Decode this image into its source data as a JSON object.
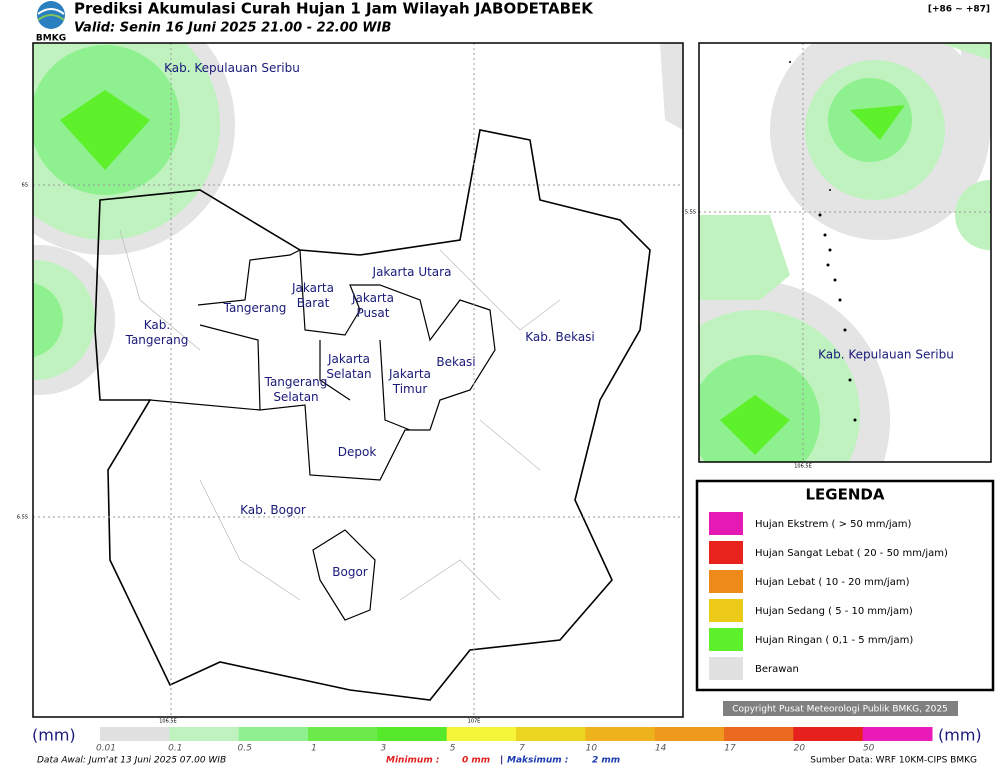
{
  "header": {
    "logo": "BMKG",
    "title": "Prediksi Akumulasi Curah Hujan 1 Jam Wilayah JABODETABEK",
    "valid": "Valid: Senin 16 Juni 2025 21.00 - 22.00 WIB",
    "range": "[+86 ~ +87]"
  },
  "main_map": {
    "regions": [
      "Kab. Kepulauan Seribu",
      "Jakarta Utara",
      "Jakarta\nBarat",
      "Jakarta\nPusat",
      "Tangerang",
      "Kab.\nTangerang",
      "Jakarta\nSelatan",
      "Jakarta\nTimur",
      "Bekasi",
      "Kab. Bekasi",
      "Tangerang\nSelatan",
      "Depok",
      "Kab. Bogor",
      "Bogor"
    ],
    "lat_labels": [
      "6S",
      "6.5S"
    ],
    "lon_labels": [
      "106.5E",
      "107E"
    ]
  },
  "inset_map": {
    "regions": [
      "Kab. Kepulauan Seribu"
    ],
    "lat_labels": [
      "5.5S"
    ],
    "lon_labels": [
      "106.5E"
    ]
  },
  "legend": {
    "title": "LEGENDA",
    "items": [
      {
        "label": "Hujan Ekstrem ( > 50 mm/jam)",
        "color": "#e619b4"
      },
      {
        "label": "Hujan Sangat Lebat ( 20 - 50 mm/jam)",
        "color": "#e8231e"
      },
      {
        "label": "Hujan Lebat ( 10 - 20 mm/jam)",
        "color": "#ee8a1a"
      },
      {
        "label": "Hujan Sedang ( 5 - 10 mm/jam)",
        "color": "#eccb18"
      },
      {
        "label": "Hujan Ringan ( 0,1 - 5 mm/jam)",
        "color": "#5ef02a"
      },
      {
        "label": "Berawan",
        "color": "#e1e1e1"
      }
    ]
  },
  "copyright": "Copyright Pusat Meteorologi Publik BMKG, 2025",
  "colorbar": {
    "unit_left": "(mm)",
    "unit_right": "(mm)",
    "labels": [
      "0.01",
      "0.1",
      "0.5",
      "1",
      "3",
      "5",
      "7",
      "10",
      "14",
      "17",
      "20",
      "50"
    ],
    "colors": [
      "#e1e1e1",
      "#bff2bf",
      "#8ff08f",
      "#6cea4a",
      "#56e82a",
      "#f5f53a",
      "#ecd520",
      "#eeb21c",
      "#ef9a1c",
      "#ea6a20",
      "#e6201c",
      "#ea1ab8"
    ]
  },
  "footer": {
    "data_awal": "Data Awal: Jum'at 13 Juni 2025 07.00 WIB",
    "min_label": "Minimum :",
    "min_value": "0 mm",
    "separator": "|",
    "max_label": "Maksimum :",
    "max_value": "2 mm",
    "source": "Sumber Data: WRF 10KM-CIPS BMKG"
  }
}
